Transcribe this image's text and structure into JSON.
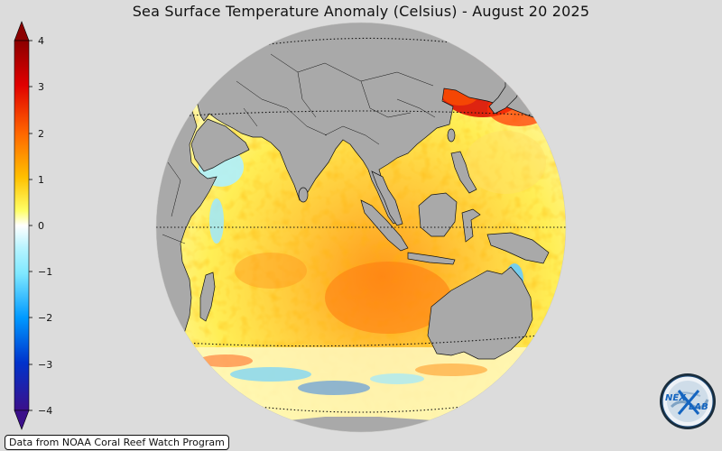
{
  "title": "Sea Surface Temperature Anomaly (Celsius) - August 20 2025",
  "colorbar": {
    "ticks": [
      "4",
      "3",
      "2",
      "1",
      "0",
      "−1",
      "−2",
      "−3",
      "−4"
    ],
    "colors": [
      "#3b0f8a",
      "#0033cc",
      "#0099ff",
      "#7fe8ff",
      "#ffffff",
      "#ffff33",
      "#ffc000",
      "#ff6600",
      "#e00000",
      "#8b0000"
    ]
  },
  "logo": {
    "text_left": "NEX",
    "text_right": "LAB",
    "icon": "nex-lab-globe-logo"
  },
  "credit": "Data from NOAA Coral Reef Watch Program",
  "colors": {
    "background": "#dcdcdc",
    "land": "#a9a9a9",
    "ocean_base": "#fff35a"
  }
}
